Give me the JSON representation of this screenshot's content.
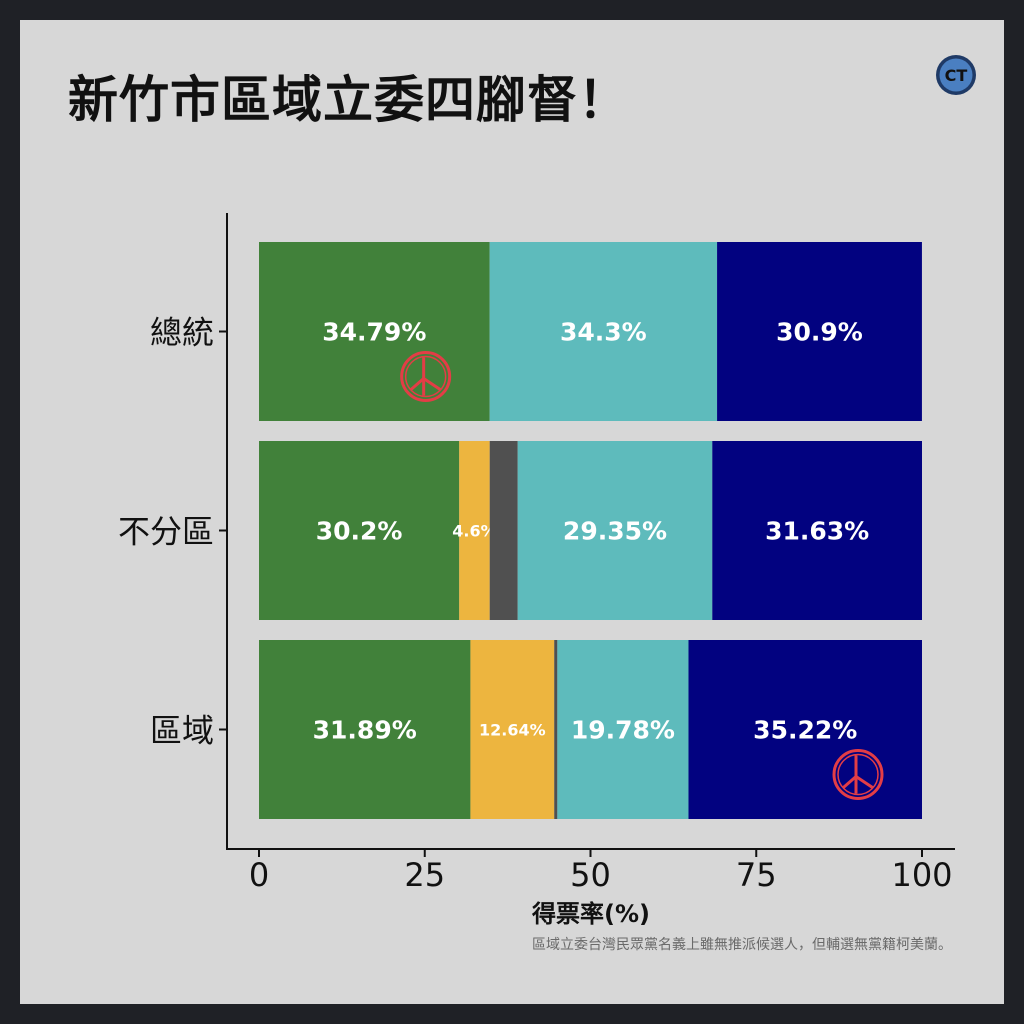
{
  "title": "新竹市區域立委四腳督！",
  "logo": {
    "label": "CT",
    "fill": "#4a7fc1",
    "ring": "#1f3a66"
  },
  "footnote": "區域立委台灣民眾黨名義上雖無推派候選人，但輔選無黨籍柯美蘭。",
  "colors": {
    "green": "#41813a",
    "yellow": "#edb53f",
    "darkgray": "#505050",
    "teal": "#5ebbbc",
    "navy": "#020280",
    "stamp": "#e33d46"
  },
  "chart_data": {
    "type": "bar",
    "orientation": "horizontal",
    "stacked": true,
    "xlabel": "得票率(%)",
    "ylabel": "",
    "xlim": [
      0,
      100
    ],
    "xticks": [
      0,
      25,
      50,
      75,
      100
    ],
    "grid": false,
    "legend": "none",
    "categories": [
      "總統",
      "不分區",
      "區域"
    ],
    "rows": [
      {
        "category": "總統",
        "segments": [
          {
            "value": 34.79,
            "label": "34.79%",
            "color": "green",
            "stamp": true
          },
          {
            "value": 34.3,
            "label": "34.3%",
            "color": "teal"
          },
          {
            "value": 30.9,
            "label": "30.9%",
            "color": "navy"
          }
        ]
      },
      {
        "category": "不分區",
        "segments": [
          {
            "value": 30.2,
            "label": "30.2%",
            "color": "green"
          },
          {
            "value": 4.6,
            "label": "4.6%",
            "color": "yellow",
            "small": true
          },
          {
            "value": 4.22,
            "label": "",
            "color": "darkgray"
          },
          {
            "value": 29.35,
            "label": "29.35%",
            "color": "teal"
          },
          {
            "value": 31.63,
            "label": "31.63%",
            "color": "navy"
          }
        ]
      },
      {
        "category": "區域",
        "segments": [
          {
            "value": 31.89,
            "label": "31.89%",
            "color": "green"
          },
          {
            "value": 12.64,
            "label": "12.64%",
            "color": "yellow",
            "small": true
          },
          {
            "value": 0.47,
            "label": "",
            "color": "darkgray"
          },
          {
            "value": 19.78,
            "label": "19.78%",
            "color": "teal"
          },
          {
            "value": 35.22,
            "label": "35.22%",
            "color": "navy",
            "stamp": true
          }
        ]
      }
    ]
  }
}
